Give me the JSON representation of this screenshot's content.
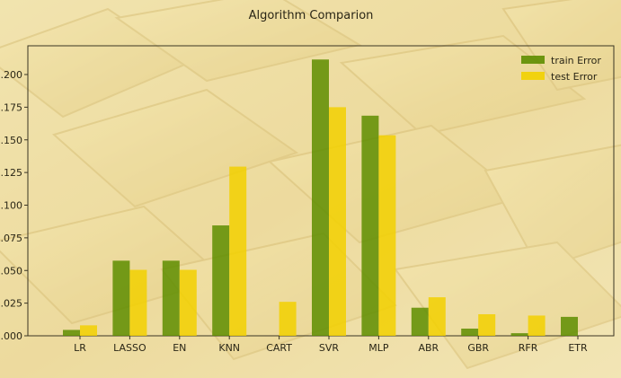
{
  "chart_data": {
    "type": "bar",
    "title": "Algorithm Comparion",
    "xlabel": "",
    "ylabel": "",
    "categories": [
      "LR",
      "LASSO",
      "EN",
      "KNN",
      "CART",
      "SVR",
      "MLP",
      "ABR",
      "GBR",
      "RFR",
      "ETR"
    ],
    "series": [
      {
        "name": "train Error",
        "color": "#5e8d00",
        "values": [
          0.0045,
          0.0575,
          0.0575,
          0.0845,
          0.0,
          0.2115,
          0.1685,
          0.0215,
          0.0055,
          0.002,
          0.0145
        ]
      },
      {
        "name": "test Error",
        "color": "#f2d000",
        "values": [
          0.008,
          0.0505,
          0.0505,
          0.1295,
          0.026,
          0.175,
          0.1535,
          0.0295,
          0.0165,
          0.0155,
          0.0
        ]
      }
    ],
    "ylim": [
      0,
      0.222
    ],
    "yticks": [
      0.0,
      0.025,
      0.05,
      0.075,
      0.1,
      0.125,
      0.15,
      0.175,
      0.2
    ],
    "ytick_labels": [
      ".000",
      "0.025",
      "0.050",
      "0.075",
      "0.100",
      "0.125",
      "0.150",
      "0.175",
      "0.200"
    ],
    "legend_position": "top-right",
    "grid": false
  }
}
